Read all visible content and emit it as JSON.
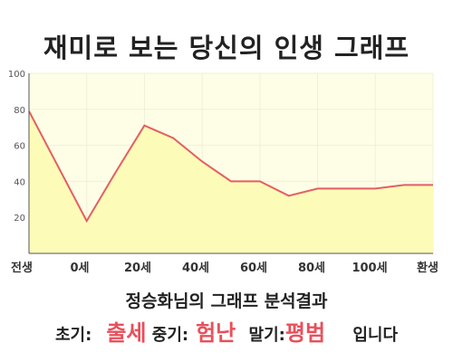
{
  "title": "재미로 보는 당신의 인생 그래프",
  "chart_data": {
    "type": "area",
    "categories": [
      "전생",
      "0세",
      "20세",
      "40세",
      "60세",
      "80세",
      "100세",
      "환생"
    ],
    "x": [
      -20,
      0,
      10,
      20,
      30,
      40,
      50,
      60,
      70,
      80,
      90,
      100,
      110
    ],
    "values": [
      79,
      18,
      45,
      71,
      64,
      51,
      40,
      40,
      32,
      36,
      36,
      36,
      38
    ],
    "xlim": [
      -20,
      120
    ],
    "ylim": [
      0,
      100
    ],
    "yticks": [
      20,
      40,
      60,
      80,
      100
    ],
    "grid": true,
    "line_color": "#e35f62",
    "fill_color": "#fdfbb8",
    "plot_bg": "#fefee6",
    "grid_color": "#f0f0d8"
  },
  "result": {
    "title": "정승화님의 그래프 분석결과",
    "early_label": "초기:",
    "early_value": "출세",
    "mid_label": "중기:",
    "mid_value": "험난",
    "late_label": "말기:",
    "late_value": "평범",
    "suffix": "입니다"
  }
}
